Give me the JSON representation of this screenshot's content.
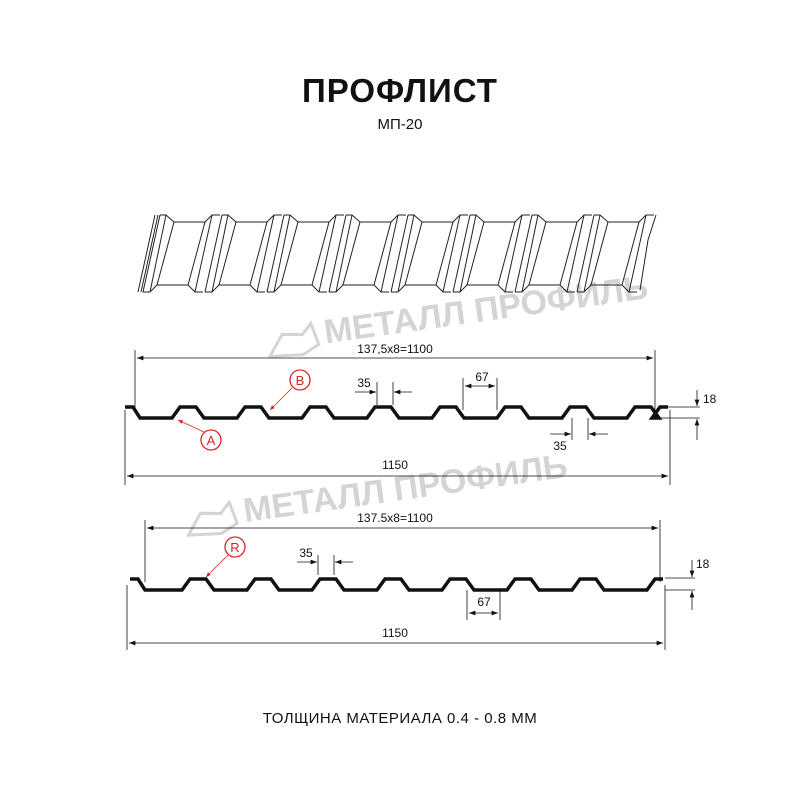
{
  "header": {
    "title": "ПРОФЛИСТ",
    "subtitle": "МП-20"
  },
  "watermark": "МЕТАЛЛ ПРОФИЛЬ",
  "profile_top": {
    "overall_width": "137,5x8=1100",
    "total_width": "1150",
    "rib_top": "35",
    "trough": "67",
    "height": "18",
    "bottom_rib": "35",
    "marker_a": "A",
    "marker_b": "B"
  },
  "profile_bottom": {
    "overall_width": "137.5x8=1100",
    "total_width": "1150",
    "rib_top": "35",
    "trough": "67",
    "height": "18",
    "marker_r": "R"
  },
  "footer": {
    "thickness": "ТОЛЩИНА МАТЕРИАЛА 0.4 - 0.8 ММ"
  },
  "colors": {
    "line": "#111111",
    "marker": "#e02020",
    "watermark": "#d4d4d4"
  }
}
